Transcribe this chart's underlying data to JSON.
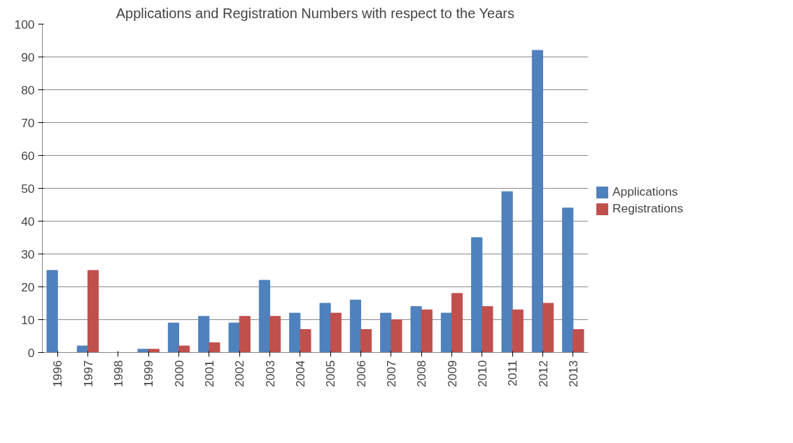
{
  "chart_data": {
    "type": "bar",
    "title": "Applications and Registration Numbers with respect to the Years",
    "categories": [
      "1996",
      "1997",
      "1998",
      "1999",
      "2000",
      "2001",
      "2002",
      "2003",
      "2004",
      "2005",
      "2006",
      "2007",
      "2008",
      "2009",
      "2010",
      "2011",
      "2012",
      "2013"
    ],
    "series": [
      {
        "name": "Applications",
        "color": "#4f81bd",
        "values": [
          25,
          2,
          0,
          1,
          9,
          11,
          9,
          22,
          12,
          15,
          16,
          12,
          14,
          12,
          35,
          49,
          92,
          44
        ]
      },
      {
        "name": "Registrations",
        "color": "#c0504d",
        "values": [
          0,
          25,
          0,
          1,
          2,
          3,
          11,
          11,
          7,
          12,
          7,
          10,
          13,
          18,
          14,
          13,
          15,
          7
        ]
      }
    ],
    "ylim": [
      0,
      100
    ],
    "yticks": [
      0,
      10,
      20,
      30,
      40,
      50,
      60,
      70,
      80,
      90,
      100
    ],
    "grid": "y",
    "legend": "right"
  }
}
